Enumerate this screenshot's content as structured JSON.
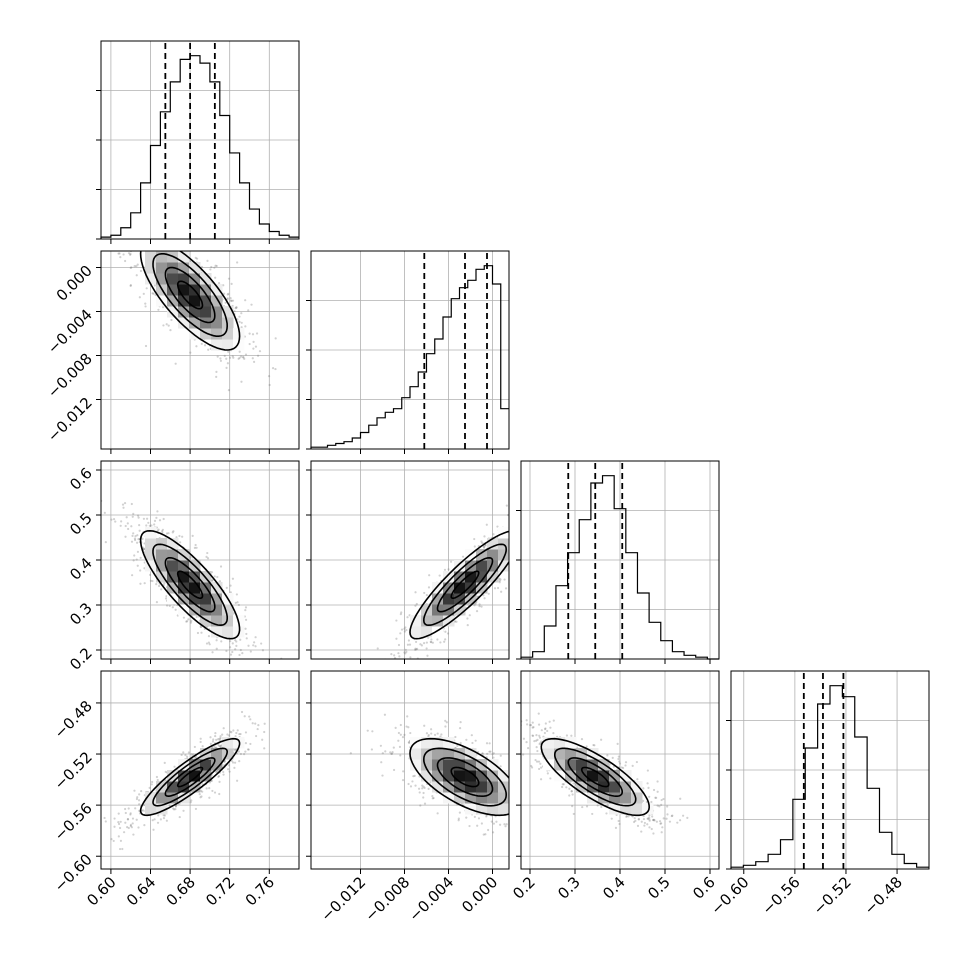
{
  "chart_data": {
    "type": "corner",
    "grid": true,
    "colors": {
      "line": "#000000",
      "points": "#7a7a7a",
      "grid": "#b0b0b0"
    },
    "parameters": [
      {
        "mean": 0.68,
        "sd": 0.025,
        "range": [
          0.59,
          0.79
        ],
        "ticks": [
          0.6,
          0.64,
          0.68,
          0.72,
          0.76
        ],
        "tick_labels": [
          "0.60",
          "0.64",
          "0.68",
          "0.72",
          "0.76"
        ],
        "quantiles": [
          0.655,
          0.68,
          0.705
        ]
      },
      {
        "mean": -0.0025,
        "sd": 0.0025,
        "range": [
          -0.0165,
          0.0015
        ],
        "ticks": [
          -0.012,
          -0.008,
          -0.004,
          0.0
        ],
        "tick_labels": [
          "−0.012",
          "−0.008",
          "−0.004",
          "0.000"
        ],
        "quantiles": [
          -0.0062,
          -0.0025,
          -0.0005
        ]
      },
      {
        "mean": 0.345,
        "sd": 0.06,
        "range": [
          0.18,
          0.62
        ],
        "ticks": [
          0.2,
          0.3,
          0.4,
          0.5,
          0.6
        ],
        "tick_labels": [
          "0.2",
          "0.3",
          "0.4",
          "0.5",
          "0.6"
        ],
        "quantiles": [
          0.285,
          0.345,
          0.405
        ]
      },
      {
        "mean": -0.538,
        "sd": 0.015,
        "range": [
          -0.61,
          -0.455
        ],
        "ticks": [
          -0.6,
          -0.56,
          -0.52,
          -0.48
        ],
        "tick_labels": [
          "−0.60",
          "−0.56",
          "−0.52",
          "−0.48"
        ],
        "quantiles": [
          -0.553,
          -0.538,
          -0.522
        ]
      }
    ],
    "histograms": [
      {
        "counts": [
          1,
          2,
          6,
          14,
          30,
          50,
          68,
          84,
          96,
          98,
          94,
          84,
          66,
          46,
          30,
          16,
          8,
          4,
          2,
          1
        ]
      },
      {
        "counts": [
          1,
          1,
          2,
          3,
          4,
          6,
          9,
          13,
          17,
          20,
          22,
          28,
          34,
          42,
          52,
          60,
          72,
          82,
          88,
          92,
          98,
          100,
          90,
          22
        ]
      },
      {
        "counts": [
          1,
          4,
          18,
          40,
          58,
          76,
          96,
          100,
          82,
          58,
          36,
          20,
          10,
          4,
          2,
          1,
          0
        ]
      },
      {
        "counts": [
          1,
          2,
          4,
          8,
          16,
          38,
          66,
          90,
          100,
          94,
          72,
          44,
          20,
          8,
          3,
          1
        ]
      }
    ],
    "correlations": {
      "1-0": -0.75,
      "2-0": -0.82,
      "2-1": 0.88,
      "3-0": 0.88,
      "3-1": -0.62,
      "3-2": -0.78
    }
  }
}
